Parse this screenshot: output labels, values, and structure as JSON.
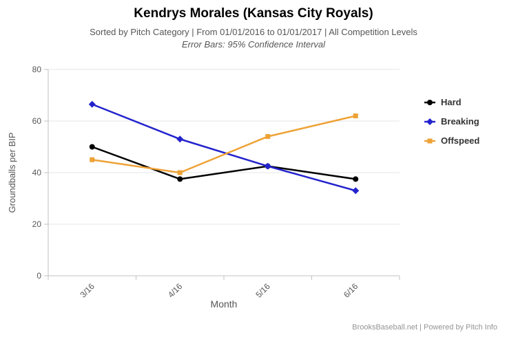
{
  "header": {
    "title": "Kendrys Morales (Kansas City Royals)",
    "subtitle": "Sorted by Pitch Category | From 01/01/2016 to 01/01/2017 | All Competition Levels",
    "error_note": "Error Bars: 95% Confidence Interval"
  },
  "chart_data": {
    "type": "line",
    "categories": [
      "3/16",
      "4/16",
      "5/16",
      "6/16"
    ],
    "series": [
      {
        "name": "Hard",
        "color": "#000000",
        "marker": "circle",
        "values": [
          50,
          37.5,
          42.5,
          37.5
        ]
      },
      {
        "name": "Breaking",
        "color": "#2323cd",
        "marker": "diamond",
        "values": [
          66.5,
          53,
          42.5,
          33
        ]
      },
      {
        "name": "Offspeed",
        "color": "#eea236",
        "marker": "square",
        "values": [
          45,
          40,
          54,
          62
        ]
      }
    ],
    "xlabel": "Month",
    "ylabel": "Groundballs per BIP",
    "ylim": [
      0,
      80
    ],
    "yticks": [
      0,
      20,
      40,
      60,
      80
    ],
    "grid": true,
    "legend_position": "right"
  },
  "colors": {
    "grid": "#e6e6e6",
    "axis": "#c0c0c0",
    "tick_text": "#555555"
  },
  "footer": {
    "credit": "BrooksBaseball.net | Powered by Pitch Info"
  }
}
